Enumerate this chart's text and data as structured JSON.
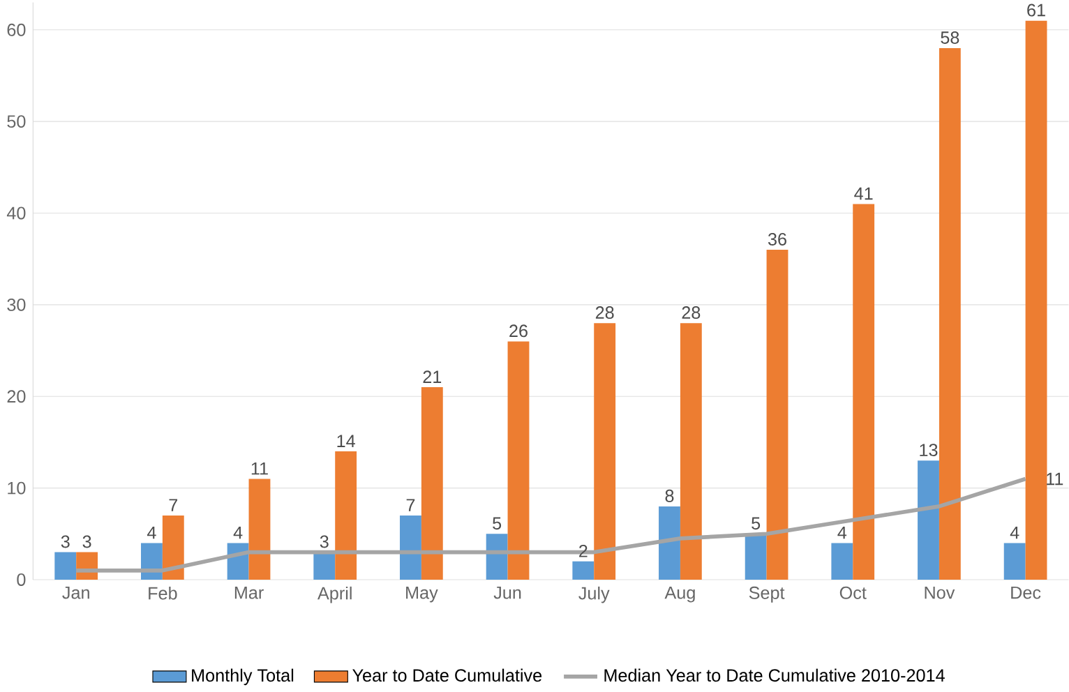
{
  "chart_data": {
    "type": "bar",
    "categories": [
      "Jan",
      "Feb",
      "Mar",
      "April",
      "May",
      "Jun",
      "July",
      "Aug",
      "Sept",
      "Oct",
      "Nov",
      "Dec"
    ],
    "series": [
      {
        "name": "Monthly Total",
        "color": "#5b9bd5",
        "values": [
          3,
          4,
          4,
          3,
          7,
          5,
          2,
          8,
          5,
          4,
          13,
          4
        ],
        "value_labels": [
          "3",
          "4",
          "4",
          "3",
          "7",
          "5",
          "2",
          "8",
          "5",
          "4",
          "13",
          "4"
        ]
      },
      {
        "name": "Year to Date Cumulative",
        "color": "#ed7d31",
        "values": [
          3,
          7,
          11,
          14,
          21,
          26,
          28,
          28,
          36,
          41,
          58,
          61
        ],
        "value_labels": [
          "3",
          "7",
          "11",
          "14",
          "21",
          "26",
          "28",
          "28",
          "36",
          "41",
          "58",
          "61"
        ]
      },
      {
        "name": "Median Year to Date Cumulative 2010-2014",
        "type": "line",
        "color": "#a5a5a5",
        "values": [
          1,
          1,
          3,
          3,
          3,
          3,
          3,
          4.5,
          5,
          6.5,
          8,
          11
        ],
        "value_labels": [
          null,
          null,
          null,
          null,
          null,
          null,
          null,
          null,
          null,
          null,
          null,
          "11"
        ]
      }
    ],
    "ylim": [
      0,
      63
    ],
    "yticks": [
      0,
      10,
      20,
      30,
      40,
      50,
      60
    ],
    "grid": "y",
    "legend": "bottom"
  }
}
